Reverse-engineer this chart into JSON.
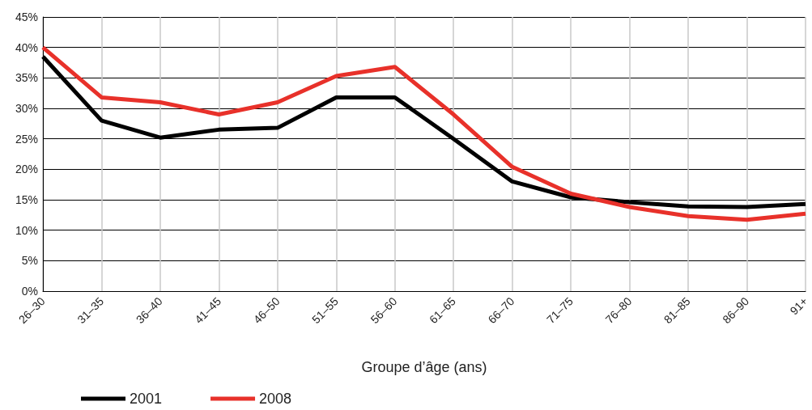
{
  "chart_data": {
    "type": "line",
    "xlabel": "Groupe d’âge (ans)",
    "categories": [
      "26–30",
      "31–35",
      "36–40",
      "41–45",
      "46–50",
      "51–55",
      "56–60",
      "61–65",
      "66–70",
      "71–75",
      "76–80",
      "81–85",
      "86–90",
      "91+"
    ],
    "series": [
      {
        "name": "2001",
        "color": "#000000",
        "values": [
          38.5,
          28,
          25.2,
          26.5,
          26.8,
          31.8,
          31.8,
          25,
          18,
          15.4,
          14.6,
          13.9,
          13.8,
          14.3
        ]
      },
      {
        "name": "2008",
        "color": "#e8312a",
        "values": [
          40,
          31.8,
          31,
          29,
          31,
          35.3,
          36.8,
          29,
          20.4,
          16,
          13.8,
          12.3,
          11.7,
          12.7
        ]
      }
    ],
    "ylim": [
      0,
      45
    ],
    "yticks": [
      {
        "value": 0,
        "label": "0%"
      },
      {
        "value": 5,
        "label": "5%"
      },
      {
        "value": 10,
        "label": "10%"
      },
      {
        "value": 15,
        "label": "15%"
      },
      {
        "value": 20,
        "label": "20%"
      },
      {
        "value": 25,
        "label": "25%"
      },
      {
        "value": 30,
        "label": "30%"
      },
      {
        "value": 35,
        "label": "35%"
      },
      {
        "value": 40,
        "label": "40%"
      },
      {
        "value": 45,
        "label": "45%"
      }
    ],
    "grid": true,
    "legend": "bottom left",
    "marker": "none",
    "line_style": "solid"
  }
}
